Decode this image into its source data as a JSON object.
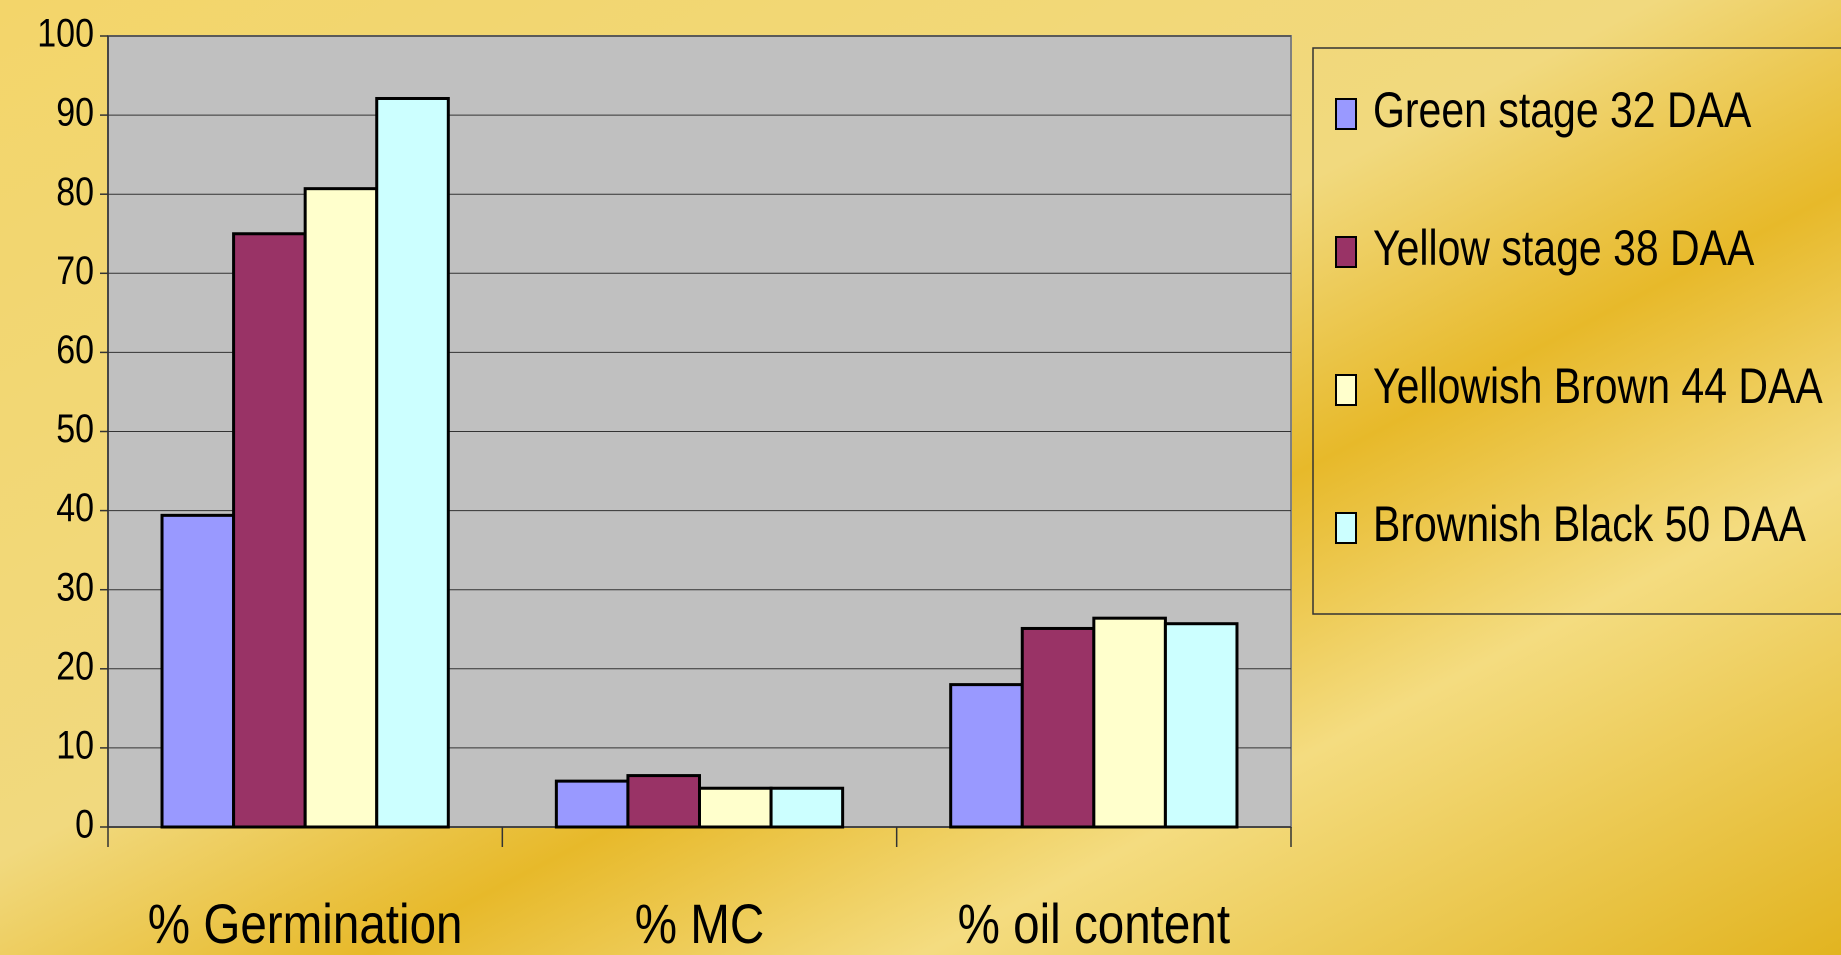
{
  "chart_data": {
    "type": "bar",
    "categories": [
      "% Germination",
      "% MC",
      "% oil content"
    ],
    "series": [
      {
        "name": "Green stage 32 DAA",
        "color": "#9999ff",
        "values": [
          39.4,
          5.8,
          18
        ]
      },
      {
        "name": "Yellow stage 38 DAA",
        "color": "#993366",
        "values": [
          75,
          6.5,
          25.1
        ]
      },
      {
        "name": "Yellowish Brown 44 DAA",
        "color": "#ffffcc",
        "values": [
          80.7,
          4.9,
          26.4
        ]
      },
      {
        "name": "Brownish Black 50 DAA",
        "color": "#ccffff",
        "values": [
          92.1,
          4.9,
          25.7
        ]
      }
    ],
    "ylim": [
      0,
      100
    ],
    "yticks": [
      0,
      10,
      20,
      30,
      40,
      50,
      60,
      70,
      80,
      90,
      100
    ],
    "grid": true,
    "legend": "right"
  }
}
